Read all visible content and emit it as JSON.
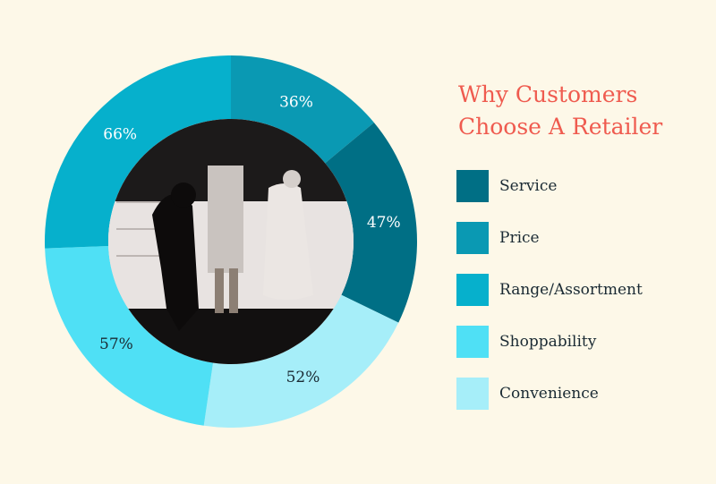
{
  "chart_data": {
    "type": "pie",
    "title_lines": [
      "Why Customers",
      "Choose A Retailer"
    ],
    "categories": [
      "Service",
      "Price",
      "Range/Assortment",
      "Shoppability",
      "Convenience"
    ],
    "values": [
      47,
      36,
      66,
      57,
      52
    ],
    "value_labels": [
      "47%",
      "36%",
      "66%",
      "57%",
      "52%"
    ],
    "colors": [
      "#006f85",
      "#0a99b3",
      "#06b0cc",
      "#4fe0f5",
      "#a6eef9"
    ],
    "label_colors": [
      "#ffffff",
      "#ffffff",
      "#ffffff",
      "#1a2a33",
      "#1a2a33"
    ],
    "slice_order": [
      1,
      0,
      4,
      3,
      2
    ],
    "center_image": "storefront-photo",
    "legend_placement": "right"
  }
}
